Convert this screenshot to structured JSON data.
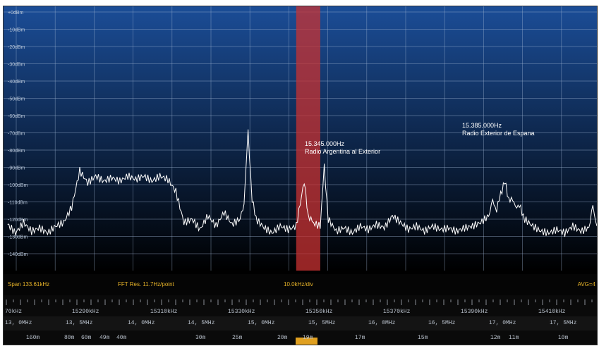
{
  "colors": {
    "bg_top": "#1b4d97",
    "bg_bottom": "#000000",
    "grid": "#9fb4d2",
    "trace": "#ffffff",
    "marker": "#c83232",
    "status_text": "#e8b429"
  },
  "db_labels": [
    "+0dBm",
    "-10dBm",
    "-20dBm",
    "-30dBm",
    "-40dBm",
    "-50dBm",
    "-60dBm",
    "-70dBm",
    "-80dBm",
    "-90dBm",
    "-100dBm",
    "-110dBm",
    "-120dBm",
    "-130dBm",
    "-140dBm"
  ],
  "annotations": [
    {
      "freq": "15.345.000Hz",
      "station": "Radio Argentina al Exterior"
    },
    {
      "freq": "15.385.000Hz",
      "station": "Radio Exterior de Espana"
    }
  ],
  "status": {
    "span": "Span 133.61kHz",
    "fft": "FFT Res. 11.7Hz/point",
    "div": "10.0kHz/div",
    "avg": "AVG=4"
  },
  "scale_khz": [
    "70kHz",
    "15290kHz",
    "15310kHz",
    "15330kHz",
    "15350kHz",
    "15370kHz",
    "15390kHz",
    "15410kHz"
  ],
  "scale_mhz": [
    "13, 0MHz",
    "13, 5MHz",
    "14, 0MHz",
    "14, 5MHz",
    "15, 0MHz",
    "15, 5MHz",
    "16, 0MHz",
    "16, 5MHz",
    "17, 0MHz",
    "17, 5MHz"
  ],
  "scale_m": [
    "160m",
    "80m",
    "60m",
    "49m",
    "40m",
    "30m",
    "25m",
    "20m",
    "19m",
    "17m",
    "15m",
    "12m",
    "11m",
    "10m"
  ],
  "chart_data": {
    "type": "line",
    "xlabel": "",
    "ylabel": "",
    "x_unit": "kHz",
    "xlim": [
      15270,
      15418
    ],
    "ylim": [
      -140,
      0
    ],
    "grid": true,
    "marker_band_khz": [
      15343,
      15349
    ],
    "series": [
      {
        "name": "",
        "points": [
          [
            15271,
            -123
          ],
          [
            15273,
            -128
          ],
          [
            15275,
            -122
          ],
          [
            15277,
            -127
          ],
          [
            15279,
            -125
          ],
          [
            15281,
            -128
          ],
          [
            15283,
            -124
          ],
          [
            15285,
            -122
          ],
          [
            15287,
            -113
          ],
          [
            15289,
            -92
          ],
          [
            15291,
            -99
          ],
          [
            15293,
            -95
          ],
          [
            15295,
            -98
          ],
          [
            15297,
            -96
          ],
          [
            15299,
            -98
          ],
          [
            15301,
            -95
          ],
          [
            15303,
            -97
          ],
          [
            15305,
            -95
          ],
          [
            15307,
            -98
          ],
          [
            15309,
            -95
          ],
          [
            15311,
            -97
          ],
          [
            15313,
            -104
          ],
          [
            15315,
            -122
          ],
          [
            15317,
            -120
          ],
          [
            15319,
            -126
          ],
          [
            15321,
            -118
          ],
          [
            15323,
            -124
          ],
          [
            15325,
            -116
          ],
          [
            15327,
            -123
          ],
          [
            15329,
            -120
          ],
          [
            15330,
            -110
          ],
          [
            15331,
            -70
          ],
          [
            15332,
            -108
          ],
          [
            15333,
            -120
          ],
          [
            15335,
            -125
          ],
          [
            15337,
            -128
          ],
          [
            15339,
            -124
          ],
          [
            15341,
            -126
          ],
          [
            15343,
            -124
          ],
          [
            15345,
            -98
          ],
          [
            15346,
            -118
          ],
          [
            15347,
            -122
          ],
          [
            15349,
            -124
          ],
          [
            15350,
            -90
          ],
          [
            15351,
            -120
          ],
          [
            15353,
            -127
          ],
          [
            15355,
            -125
          ],
          [
            15357,
            -128
          ],
          [
            15359,
            -124
          ],
          [
            15361,
            -126
          ],
          [
            15363,
            -123
          ],
          [
            15365,
            -125
          ],
          [
            15367,
            -118
          ],
          [
            15369,
            -122
          ],
          [
            15371,
            -126
          ],
          [
            15373,
            -124
          ],
          [
            15375,
            -127
          ],
          [
            15377,
            -124
          ],
          [
            15379,
            -126
          ],
          [
            15381,
            -125
          ],
          [
            15383,
            -127
          ],
          [
            15385,
            -125
          ],
          [
            15387,
            -124
          ],
          [
            15389,
            -122
          ],
          [
            15391,
            -118
          ],
          [
            15392,
            -110
          ],
          [
            15393,
            -114
          ],
          [
            15394,
            -106
          ],
          [
            15395,
            -98
          ],
          [
            15396,
            -108
          ],
          [
            15397,
            -110
          ],
          [
            15398,
            -112
          ],
          [
            15399,
            -114
          ],
          [
            15400,
            -120
          ],
          [
            15402,
            -124
          ],
          [
            15404,
            -127
          ],
          [
            15406,
            -128
          ],
          [
            15408,
            -126
          ],
          [
            15410,
            -128
          ],
          [
            15412,
            -124
          ],
          [
            15414,
            -127
          ],
          [
            15416,
            -125
          ],
          [
            15417,
            -113
          ],
          [
            15418,
            -124
          ]
        ]
      }
    ]
  }
}
